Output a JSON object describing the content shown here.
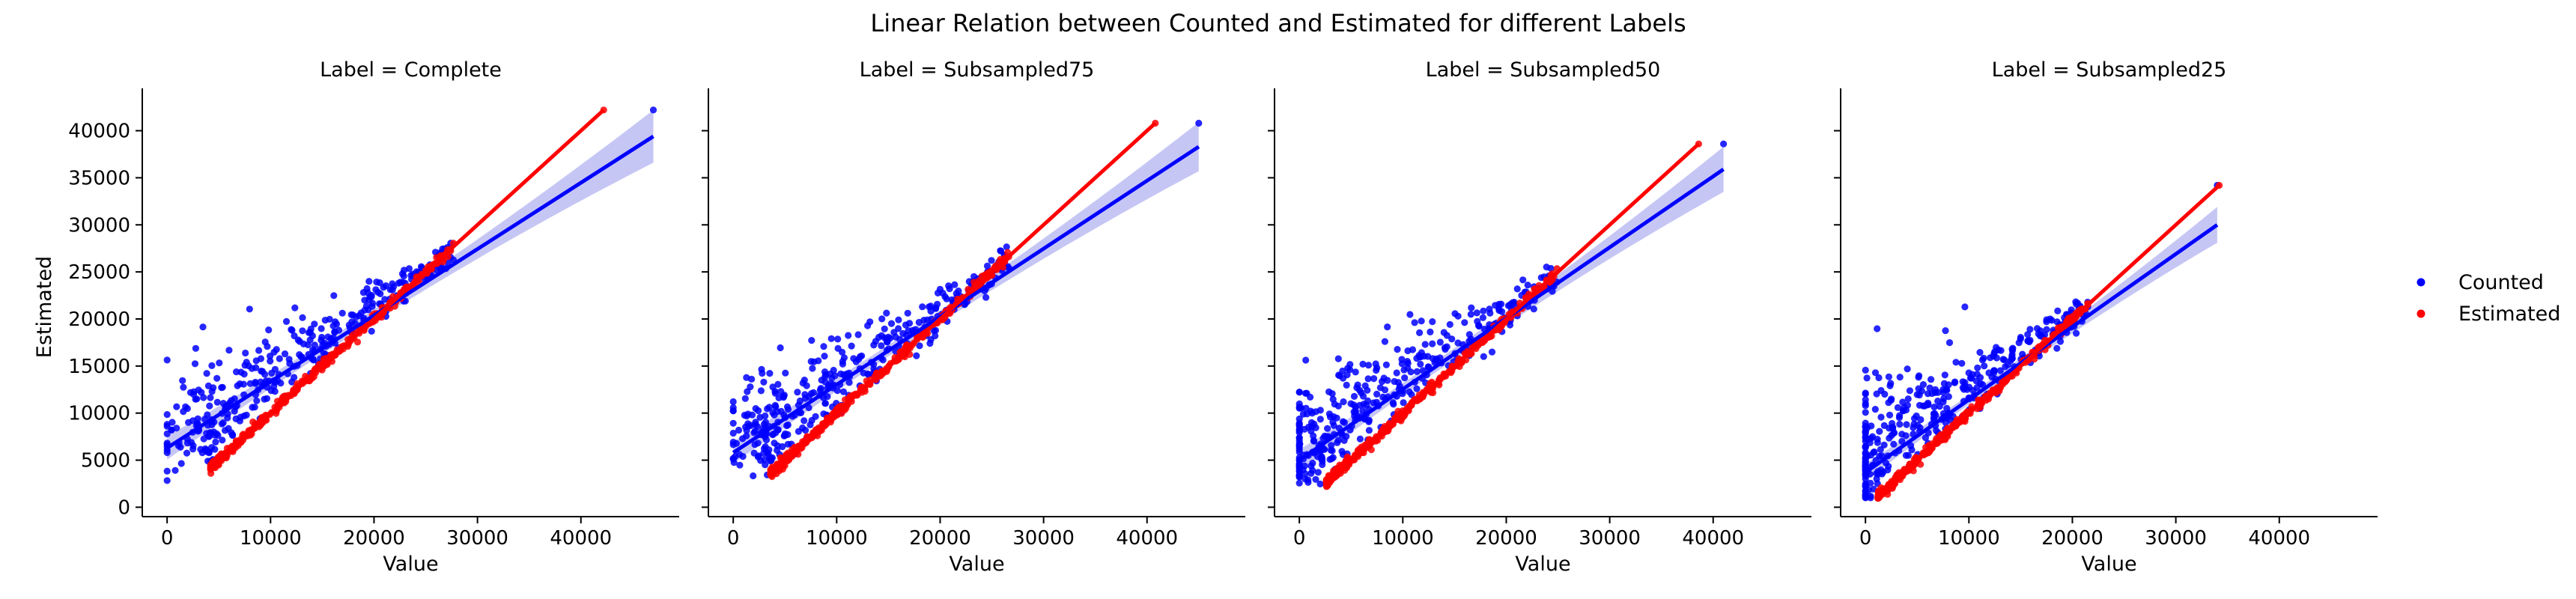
{
  "figure": {
    "title": "Linear Relation between Counted and Estimated for different Labels",
    "ylabel": "Estimated",
    "xlabel": "Value"
  },
  "colors": {
    "counted": "#0000ff",
    "estimated": "#ff0000",
    "ci_band": "#b3b3f2"
  },
  "legend": {
    "placement": "right",
    "items": [
      {
        "label": "Counted",
        "color": "#0000ff"
      },
      {
        "label": "Estimated",
        "color": "#ff0000"
      }
    ]
  },
  "chart_data": [
    {
      "type": "scatter",
      "title": "Label = Complete",
      "xlim": [
        -2400,
        49500
      ],
      "ylim": [
        -1000,
        44500
      ],
      "xticks": [
        0,
        10000,
        20000,
        30000,
        40000
      ],
      "yticks": [
        0,
        5000,
        10000,
        15000,
        20000,
        25000,
        30000,
        35000,
        40000
      ],
      "series": [
        {
          "name": "Counted",
          "n": 360,
          "xrange": [
            0,
            47000
          ],
          "fit": {
            "x": [
              0,
              47000
            ],
            "y": [
              6300,
              39400
            ],
            "ci_half": [
              600,
              2800
            ]
          }
        },
        {
          "name": "Estimated",
          "n": 360,
          "xrange": [
            4200,
            42200
          ],
          "fit": {
            "x": [
              4200,
              42200
            ],
            "y": [
              4200,
              42200
            ]
          }
        }
      ]
    },
    {
      "type": "scatter",
      "title": "Label = Subsampled75",
      "xlim": [
        -2400,
        49500
      ],
      "ylim": [
        -1000,
        44500
      ],
      "xticks": [
        0,
        10000,
        20000,
        30000,
        40000
      ],
      "yticks": [
        0,
        5000,
        10000,
        15000,
        20000,
        25000,
        30000,
        35000,
        40000
      ],
      "series": [
        {
          "name": "Counted",
          "n": 360,
          "xrange": [
            0,
            45000
          ],
          "fit": {
            "x": [
              0,
              45000
            ],
            "y": [
              5800,
              38300
            ],
            "ci_half": [
              600,
              2600
            ]
          }
        },
        {
          "name": "Estimated",
          "n": 360,
          "xrange": [
            3600,
            40800
          ],
          "fit": {
            "x": [
              3600,
              40800
            ],
            "y": [
              3600,
              40800
            ]
          }
        }
      ]
    },
    {
      "type": "scatter",
      "title": "Label = Subsampled50",
      "xlim": [
        -2400,
        49500
      ],
      "ylim": [
        -1000,
        44500
      ],
      "xticks": [
        0,
        10000,
        20000,
        30000,
        40000
      ],
      "yticks": [
        0,
        5000,
        10000,
        15000,
        20000,
        25000,
        30000,
        35000,
        40000
      ],
      "series": [
        {
          "name": "Counted",
          "n": 360,
          "xrange": [
            0,
            41000
          ],
          "fit": {
            "x": [
              0,
              41000
            ],
            "y": [
              5000,
              35900
            ],
            "ci_half": [
              600,
              2400
            ]
          }
        },
        {
          "name": "Estimated",
          "n": 360,
          "xrange": [
            2600,
            38600
          ],
          "fit": {
            "x": [
              2600,
              38600
            ],
            "y": [
              2600,
              38600
            ]
          }
        }
      ]
    },
    {
      "type": "scatter",
      "title": "Label = Subsampled25",
      "xlim": [
        -2400,
        49500
      ],
      "ylim": [
        -1000,
        44500
      ],
      "xticks": [
        0,
        10000,
        20000,
        30000,
        40000
      ],
      "yticks": [
        0,
        5000,
        10000,
        15000,
        20000,
        25000,
        30000,
        35000,
        40000
      ],
      "series": [
        {
          "name": "Counted",
          "n": 360,
          "xrange": [
            0,
            34000
          ],
          "fit": {
            "x": [
              0,
              34000
            ],
            "y": [
              3700,
              30000
            ],
            "ci_half": [
              500,
              1900
            ]
          }
        },
        {
          "name": "Estimated",
          "n": 360,
          "xrange": [
            1200,
            34200
          ],
          "fit": {
            "x": [
              1200,
              34200
            ],
            "y": [
              1200,
              34200
            ]
          }
        }
      ]
    }
  ]
}
